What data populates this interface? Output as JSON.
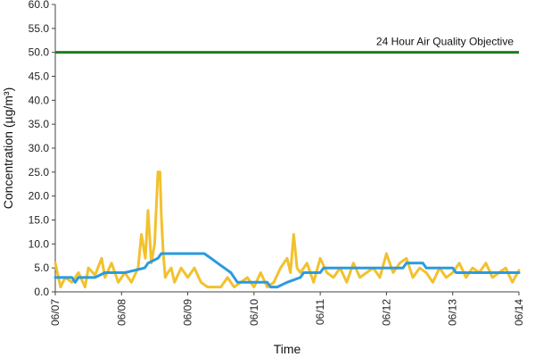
{
  "chart_data": {
    "type": "line",
    "title": "",
    "xlabel": "Time",
    "ylabel": "Concentration (µg/m³)",
    "ylim": [
      0,
      60
    ],
    "xlim": [
      "06/07",
      "06/14"
    ],
    "grid": false,
    "legend": "none",
    "y_ticks": [
      "0.0",
      "5.0",
      "10.0",
      "15.0",
      "20.0",
      "25.0",
      "30.0",
      "35.0",
      "40.0",
      "45.0",
      "50.0",
      "55.0",
      "60.0"
    ],
    "x_ticks": [
      "06/07",
      "06/08",
      "06/09",
      "06/10",
      "06/11",
      "06/12",
      "06/13",
      "06/14"
    ],
    "reference_line": {
      "value": 50.0,
      "label": "24 Hour Air Quality Objective",
      "color": "#1e7d1e"
    },
    "x_unit": "days after 06/07 00:00",
    "series": [
      {
        "color": "#f2c12e",
        "x": [
          0.0,
          0.08,
          0.15,
          0.25,
          0.35,
          0.45,
          0.5,
          0.6,
          0.7,
          0.75,
          0.85,
          0.95,
          1.05,
          1.15,
          1.25,
          1.3,
          1.36,
          1.4,
          1.45,
          1.5,
          1.55,
          1.58,
          1.6,
          1.63,
          1.66,
          1.7,
          1.75,
          1.8,
          1.9,
          2.0,
          2.1,
          2.2,
          2.3,
          2.4,
          2.5,
          2.6,
          2.7,
          2.8,
          2.9,
          3.0,
          3.1,
          3.2,
          3.3,
          3.4,
          3.5,
          3.55,
          3.6,
          3.65,
          3.7,
          3.8,
          3.9,
          4.0,
          4.1,
          4.2,
          4.3,
          4.4,
          4.5,
          4.6,
          4.7,
          4.8,
          4.9,
          5.0,
          5.1,
          5.2,
          5.3,
          5.4,
          5.5,
          5.6,
          5.7,
          5.8,
          5.9,
          6.0,
          6.1,
          6.2,
          6.3,
          6.4,
          6.5,
          6.6,
          6.7,
          6.8,
          6.9,
          7.0
        ],
        "y": [
          6.0,
          1.0,
          3.0,
          2.0,
          4.0,
          1.0,
          5.0,
          3.5,
          7.0,
          3.0,
          6.0,
          2.0,
          4.0,
          2.0,
          5.0,
          12.0,
          7.0,
          17.0,
          6.0,
          10.0,
          25.0,
          25.0,
          16.0,
          8.0,
          3.0,
          4.0,
          5.0,
          2.0,
          5.0,
          3.0,
          5.0,
          2.0,
          1.0,
          1.0,
          1.0,
          3.0,
          1.0,
          2.0,
          3.0,
          1.0,
          4.0,
          1.0,
          2.0,
          5.0,
          7.0,
          4.0,
          12.0,
          5.0,
          4.0,
          6.0,
          2.0,
          7.0,
          4.0,
          3.0,
          5.0,
          2.0,
          6.0,
          3.0,
          4.0,
          5.0,
          3.0,
          8.0,
          4.0,
          6.0,
          7.0,
          3.0,
          5.0,
          4.0,
          2.0,
          5.0,
          3.0,
          4.0,
          6.0,
          3.0,
          5.0,
          4.0,
          6.0,
          3.0,
          4.0,
          5.0,
          2.0,
          4.5
        ]
      },
      {
        "color": "#2a9be0",
        "x": [
          0.0,
          0.25,
          0.3,
          0.35,
          0.6,
          0.75,
          0.95,
          1.05,
          1.35,
          1.4,
          1.55,
          1.6,
          2.25,
          2.35,
          2.45,
          2.65,
          2.75,
          3.2,
          3.25,
          3.35,
          3.5,
          3.7,
          3.75,
          4.0,
          4.05,
          4.3,
          4.35,
          5.25,
          5.3,
          5.55,
          5.6,
          6.0,
          6.05,
          6.3,
          6.35,
          7.0
        ],
        "y": [
          3.0,
          3.0,
          2.0,
          3.0,
          3.0,
          4.0,
          4.0,
          4.0,
          5.0,
          6.0,
          7.0,
          8.0,
          8.0,
          7.0,
          6.0,
          4.0,
          2.0,
          2.0,
          1.0,
          1.0,
          2.0,
          3.0,
          4.0,
          4.0,
          5.0,
          5.0,
          5.0,
          5.0,
          6.0,
          6.0,
          5.0,
          5.0,
          4.0,
          4.0,
          4.0,
          4.0
        ]
      }
    ]
  }
}
